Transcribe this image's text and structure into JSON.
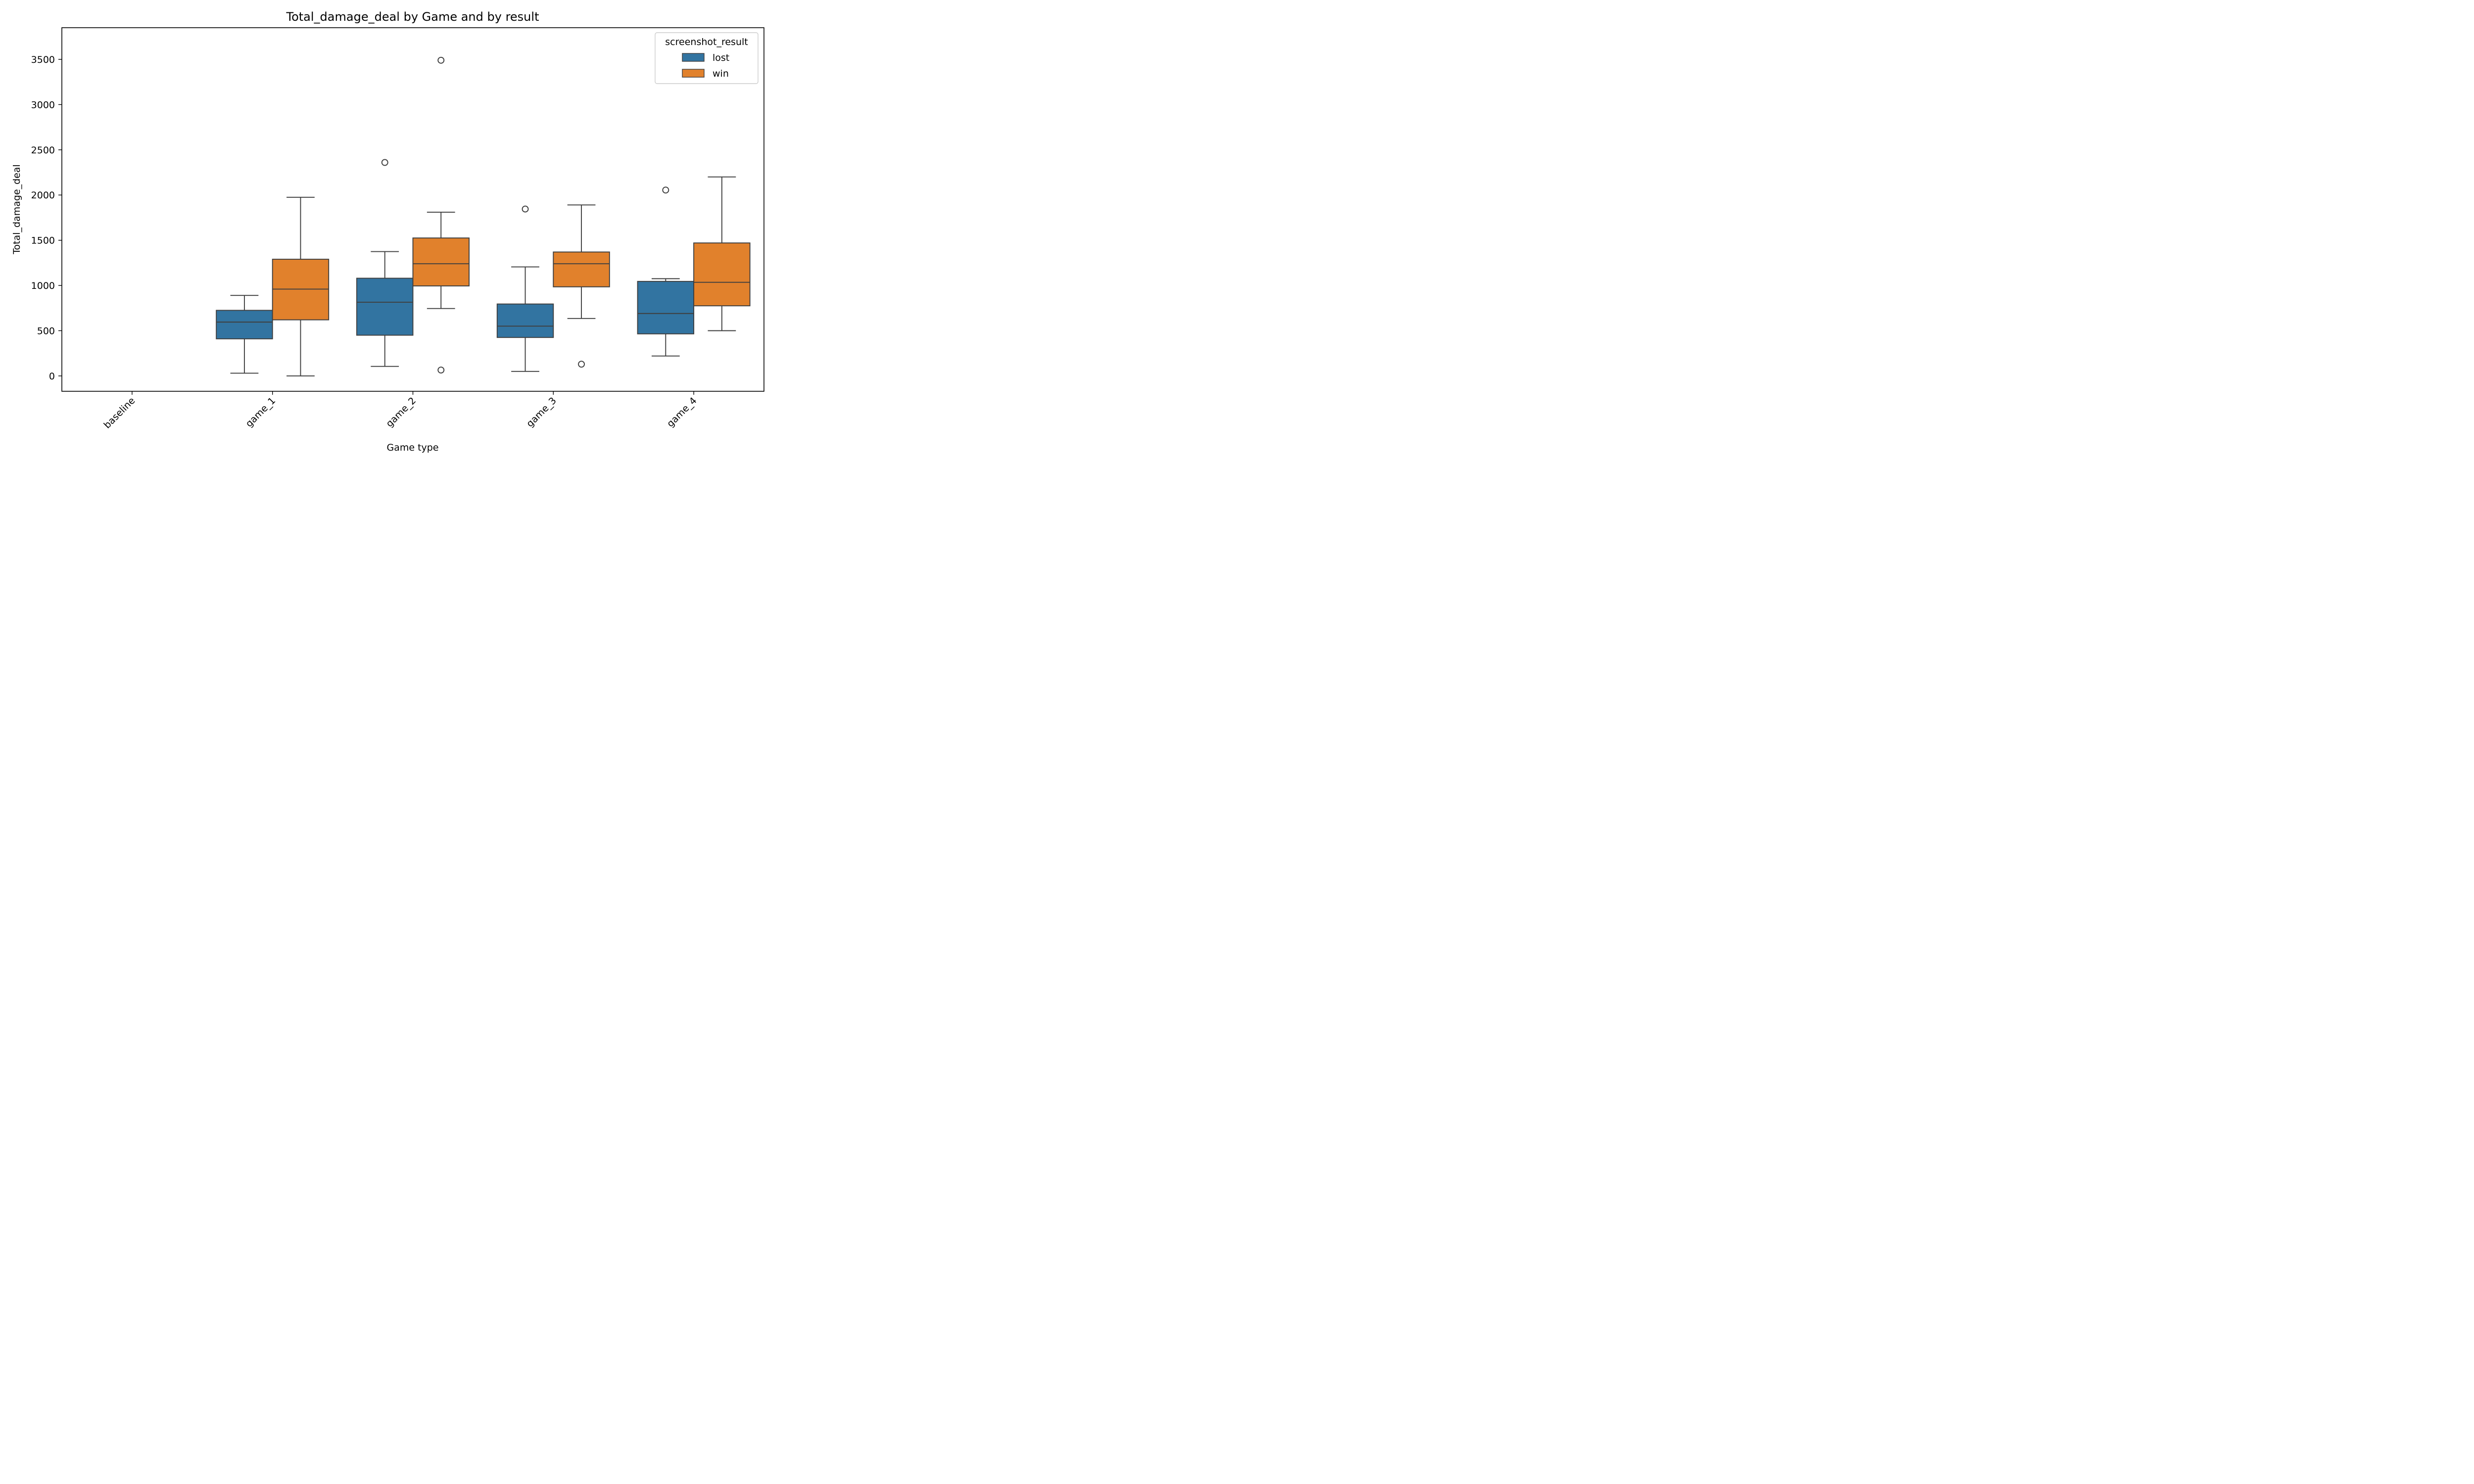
{
  "chart_data": {
    "type": "box",
    "title": "Total_damage_deal by Game and by result",
    "xlabel": "Game type",
    "ylabel": "Total_damage_deal",
    "categories": [
      "baseline",
      "game_1",
      "game_2",
      "game_3",
      "game_4"
    ],
    "ylim": [
      -170,
      3850
    ],
    "yticks": [
      0,
      500,
      1000,
      1500,
      2000,
      2500,
      3000,
      3500
    ],
    "legend": {
      "title": "screenshot_result",
      "placement": "top-right"
    },
    "series": [
      {
        "name": "lost",
        "color": "#3274a1",
        "boxes": [
          null,
          {
            "whisker_low": 30,
            "q1": 410,
            "median": 595,
            "q3": 725,
            "whisker_high": 890,
            "outliers": []
          },
          {
            "whisker_low": 105,
            "q1": 450,
            "median": 815,
            "q3": 1080,
            "whisker_high": 1375,
            "outliers": [
              2360
            ]
          },
          {
            "whisker_low": 50,
            "q1": 425,
            "median": 550,
            "q3": 795,
            "whisker_high": 1205,
            "outliers": [
              1845
            ]
          },
          {
            "whisker_low": 220,
            "q1": 465,
            "median": 690,
            "q3": 1045,
            "whisker_high": 1075,
            "outliers": [
              2055
            ]
          }
        ]
      },
      {
        "name": "win",
        "color": "#e1812c",
        "boxes": [
          null,
          {
            "whisker_low": 0,
            "q1": 620,
            "median": 960,
            "q3": 1290,
            "whisker_high": 1975,
            "outliers": []
          },
          {
            "whisker_low": 745,
            "q1": 995,
            "median": 1240,
            "q3": 1525,
            "whisker_high": 1810,
            "outliers": [
              3490,
              65
            ]
          },
          {
            "whisker_low": 635,
            "q1": 985,
            "median": 1240,
            "q3": 1370,
            "whisker_high": 1890,
            "outliers": [
              130
            ]
          },
          {
            "whisker_low": 500,
            "q1": 775,
            "median": 1035,
            "q3": 1470,
            "whisker_high": 2200,
            "outliers": []
          }
        ]
      }
    ]
  }
}
